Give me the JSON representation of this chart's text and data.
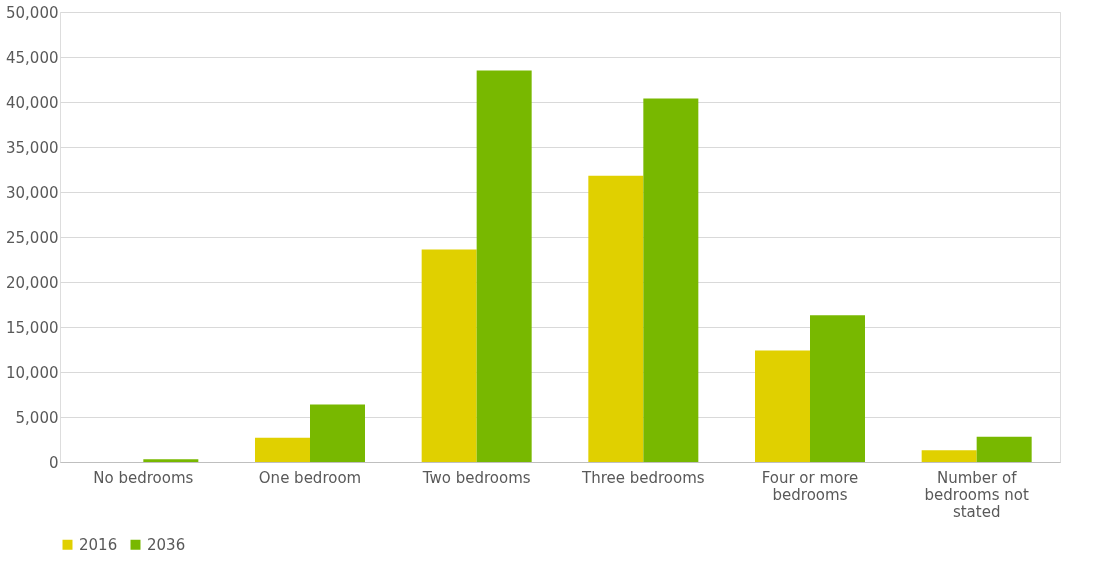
{
  "chart_data": {
    "type": "bar",
    "categories": [
      "No bedrooms",
      "One bedroom",
      "Two bedrooms",
      "Three bedrooms",
      "Four or more bedrooms",
      "Number of bedrooms not stated"
    ],
    "series": [
      {
        "name": "2016",
        "color": "#e0d000",
        "values": [
          0,
          2700,
          23600,
          31800,
          12400,
          1300
        ]
      },
      {
        "name": "2036",
        "color": "#78b800",
        "values": [
          300,
          6400,
          43500,
          40400,
          16300,
          2800
        ]
      }
    ],
    "ylim": [
      0,
      50000
    ],
    "yticks": [
      {
        "value": 0,
        "label": "0"
      },
      {
        "value": 5000,
        "label": "5,000"
      },
      {
        "value": 10000,
        "label": "10,000"
      },
      {
        "value": 15000,
        "label": "15,000"
      },
      {
        "value": 20000,
        "label": "20,000"
      },
      {
        "value": 25000,
        "label": "25,000"
      },
      {
        "value": 30000,
        "label": "30,000"
      },
      {
        "value": 35000,
        "label": "35,000"
      },
      {
        "value": 40000,
        "label": "40,000"
      },
      {
        "value": 45000,
        "label": "45,000"
      },
      {
        "value": 50000,
        "label": "50,000"
      }
    ],
    "grid": "y",
    "legend": "bottom"
  }
}
